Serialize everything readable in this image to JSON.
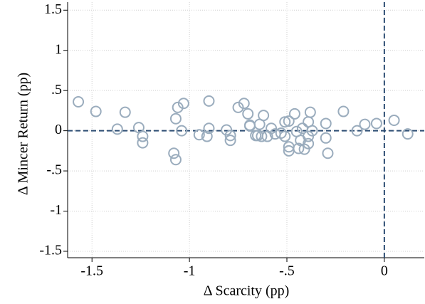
{
  "chart_data": {
    "type": "scatter",
    "xlabel": "Δ Scarcity (pp)",
    "ylabel": "Δ Mincer Return (pp)",
    "xlim": [
      -1.625,
      0.205
    ],
    "ylim": [
      -1.58,
      1.6
    ],
    "xticks": [
      -1.5,
      -1,
      {
        "value": -0.5,
        "label": "-.5"
      },
      0
    ],
    "yticks": [
      1.5,
      1,
      {
        "value": 0.5,
        "label": ".5"
      },
      0,
      {
        "value": -0.5,
        "label": "-.5"
      },
      -1,
      -1.5
    ],
    "grid": true,
    "hlines": [
      0
    ],
    "vlines": [
      0
    ],
    "ref_color": "#2c4d73",
    "color": "#9aacbd",
    "series": [
      {
        "name": "points",
        "color": "#9aacbd",
        "x": [
          -1.57,
          -1.48,
          -1.33,
          -1.37,
          -1.26,
          -1.24,
          -1.24,
          -1.08,
          -1.07,
          -1.07,
          -1.06,
          -1.03,
          -1.04,
          -0.95,
          -0.91,
          -0.9,
          -0.9,
          -0.81,
          -0.79,
          -0.79,
          -0.75,
          -0.72,
          -0.7,
          -0.69,
          -0.69,
          -0.66,
          -0.65,
          -0.63,
          -0.64,
          -0.62,
          -0.6,
          -0.58,
          -0.56,
          -0.53,
          -0.51,
          -0.51,
          -0.49,
          -0.49,
          -0.49,
          -0.46,
          -0.45,
          -0.43,
          -0.44,
          -0.42,
          -0.39,
          -0.39,
          -0.39,
          -0.38,
          -0.37,
          -0.41,
          -0.3,
          -0.3,
          -0.29,
          -0.21,
          -0.14,
          -0.1,
          -0.04,
          0.05,
          0.12
        ],
        "y": [
          0.36,
          0.24,
          0.23,
          0.02,
          0.04,
          -0.07,
          -0.15,
          -0.28,
          -0.36,
          0.15,
          0.29,
          0.34,
          0,
          -0.05,
          -0.07,
          0.03,
          0.37,
          0.01,
          -0.06,
          -0.12,
          0.29,
          0.34,
          0.21,
          0.07,
          0.06,
          -0.06,
          -0.06,
          -0.07,
          0.08,
          0.19,
          -0.07,
          0.03,
          -0.04,
          -0.03,
          0.11,
          -0.07,
          -0.25,
          0.12,
          -0.2,
          0.21,
          -0.01,
          -0.12,
          -0.22,
          0.03,
          -0.16,
          -0.07,
          0.11,
          0.23,
          0,
          -0.23,
          0.09,
          -0.09,
          -0.28,
          0.24,
          0,
          0.08,
          0.09,
          0.13,
          -0.04
        ]
      }
    ]
  }
}
